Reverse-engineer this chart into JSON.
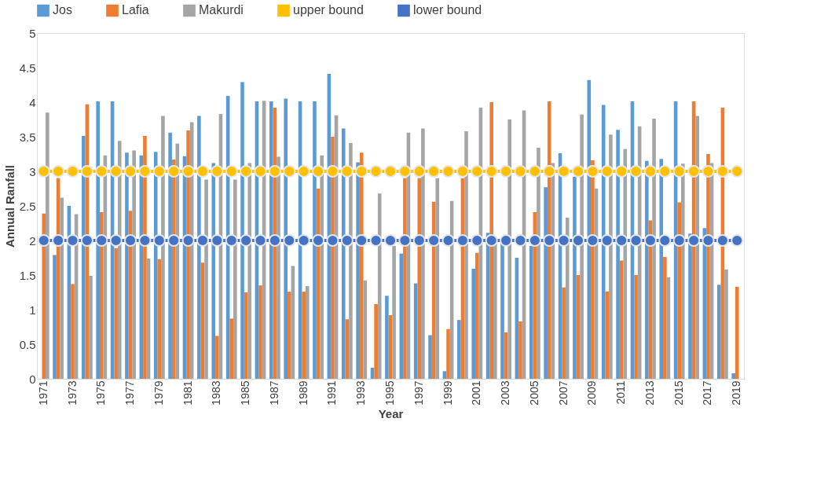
{
  "chart_data": {
    "type": "bar",
    "xlabel": "Year",
    "ylabel": "Annual Ranfall",
    "categories": [
      "1971",
      null,
      "1973",
      null,
      "1975",
      null,
      "1977",
      null,
      "1979",
      null,
      "1981",
      null,
      "1983",
      null,
      "1985",
      null,
      "1987",
      null,
      "1989",
      null,
      "1991",
      null,
      "1993",
      null,
      "1995",
      null,
      "1997",
      null,
      "1999",
      null,
      "2001",
      null,
      "2003",
      null,
      "2005",
      null,
      "2007",
      null,
      "2009",
      null,
      "2011",
      null,
      "2013",
      null,
      "2015",
      null,
      "2017",
      null,
      "2019"
    ],
    "series": [
      {
        "name": "Jos",
        "color": "#5b9bd5",
        "values": [
          null,
          1.79,
          2.5,
          3.51,
          4.01,
          4.01,
          3.27,
          3.23,
          3.28,
          3.56,
          3.22,
          3.8,
          3.12,
          4.09,
          4.29,
          4.01,
          4.01,
          4.05,
          4.01,
          4.01,
          4.41,
          3.62,
          3.13,
          0.16,
          1.2,
          1.81,
          1.38,
          0.63,
          0.11,
          0.85,
          1.59,
          2.11,
          1.96,
          1.75,
          1.92,
          2.77,
          3.26,
          2.92,
          4.32,
          3.96,
          3.6,
          4.01,
          3.15,
          3.18,
          4.01,
          2.1,
          2.18,
          1.36,
          0.08
        ]
      },
      {
        "name": "Lafia",
        "color": "#ed7d31",
        "values": [
          2.39,
          2.9,
          1.37,
          3.97,
          2.41,
          1.89,
          2.43,
          3.51,
          1.73,
          3.17,
          3.59,
          1.68,
          0.62,
          0.87,
          1.25,
          1.35,
          3.92,
          1.26,
          1.26,
          2.75,
          3.5,
          0.86,
          3.27,
          1.08,
          0.92,
          2.9,
          2.9,
          2.56,
          0.72,
          2.9,
          1.82,
          4.0,
          0.67,
          0.83,
          2.41,
          4.01,
          1.32,
          1.5,
          3.16,
          1.26,
          1.71,
          1.5,
          2.29,
          1.76,
          2.55,
          4.01,
          3.25,
          3.92,
          1.33
        ]
      },
      {
        "name": "Makurdi",
        "color": "#a5a5a5",
        "values": [
          3.85,
          2.62,
          2.38,
          1.49,
          3.23,
          3.44,
          3.3,
          1.74,
          3.8,
          3.4,
          3.71,
          2.88,
          3.83,
          2.88,
          3.12,
          4.02,
          3.21,
          1.63,
          1.34,
          3.23,
          3.81,
          3.41,
          1.42,
          2.68,
          1.92,
          3.56,
          3.62,
          2.9,
          2.57,
          3.58,
          3.92,
          1.96,
          3.75,
          3.88,
          3.34,
          3.12,
          2.33,
          3.82,
          2.75,
          3.53,
          3.32,
          3.65,
          3.76,
          1.47,
          3.11,
          3.8,
          3.12,
          1.58,
          null
        ]
      },
      {
        "name": "upper bound",
        "type": "line",
        "color": "#ffc000",
        "values": [
          3,
          3,
          3,
          3,
          3,
          3,
          3,
          3,
          3,
          3,
          3,
          3,
          3,
          3,
          3,
          3,
          3,
          3,
          3,
          3,
          3,
          3,
          3,
          3,
          3,
          3,
          3,
          3,
          3,
          3,
          3,
          3,
          3,
          3,
          3,
          3,
          3,
          3,
          3,
          3,
          3,
          3,
          3,
          3,
          3,
          3,
          3,
          3,
          3
        ]
      },
      {
        "name": "lower bound",
        "type": "line",
        "color": "#4472c4",
        "values": [
          2,
          2,
          2,
          2,
          2,
          2,
          2,
          2,
          2,
          2,
          2,
          2,
          2,
          2,
          2,
          2,
          2,
          2,
          2,
          2,
          2,
          2,
          2,
          2,
          2,
          2,
          2,
          2,
          2,
          2,
          2,
          2,
          2,
          2,
          2,
          2,
          2,
          2,
          2,
          2,
          2,
          2,
          2,
          2,
          2,
          2,
          2,
          2,
          2
        ]
      }
    ],
    "ylim": [
      0,
      5
    ],
    "yticks": [
      0,
      0.5,
      1,
      1.5,
      2,
      2.5,
      3,
      3.5,
      4,
      4.5,
      5
    ],
    "grid": false,
    "legend": "top",
    "marker": "circle",
    "line_style": "solid"
  }
}
